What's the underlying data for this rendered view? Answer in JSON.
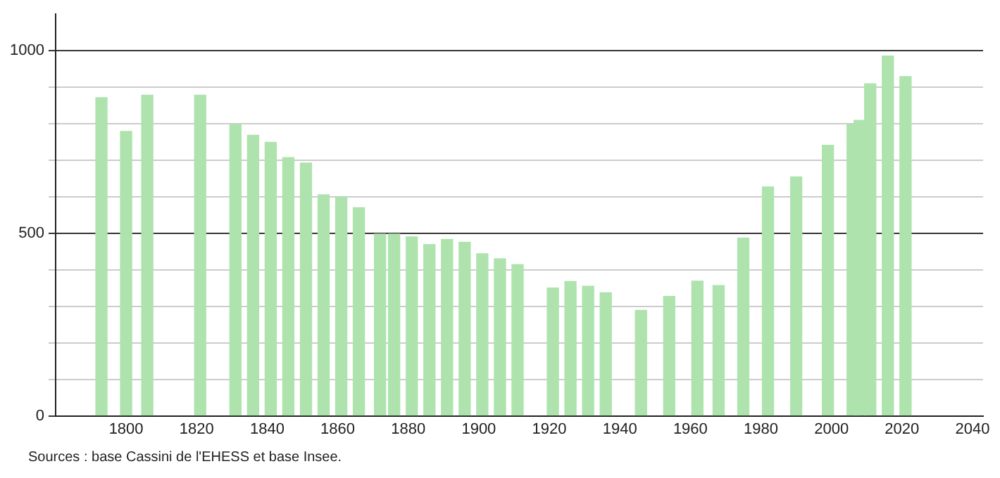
{
  "chart_data": {
    "type": "bar",
    "x": [
      1793,
      1800,
      1806,
      1821,
      1831,
      1836,
      1841,
      1846,
      1851,
      1856,
      1861,
      1866,
      1872,
      1876,
      1881,
      1886,
      1891,
      1896,
      1901,
      1906,
      1911,
      1921,
      1926,
      1931,
      1936,
      1946,
      1954,
      1962,
      1968,
      1975,
      1982,
      1990,
      1999,
      2006,
      2008,
      2011,
      2016,
      2021
    ],
    "values": [
      871,
      779,
      878,
      878,
      797,
      768,
      749,
      707,
      692,
      605,
      600,
      570,
      498,
      498,
      490,
      469,
      483,
      475,
      444,
      430,
      414,
      350,
      368,
      355,
      337,
      289,
      327,
      369,
      357,
      487,
      627,
      654,
      741,
      797,
      809,
      909,
      985,
      929
    ],
    "color": "#aee3ae",
    "xlim": [
      1780,
      2043
    ],
    "xticks": [
      1800,
      1820,
      1840,
      1860,
      1880,
      1900,
      1920,
      1940,
      1960,
      1980,
      2000,
      2020,
      2040
    ],
    "ylim": [
      0,
      1100
    ],
    "yticks": [
      0,
      {
        "value": 100,
        "label": null
      },
      {
        "value": 200,
        "label": null
      },
      {
        "value": 300,
        "label": null
      },
      {
        "value": 400,
        "label": null
      },
      500,
      {
        "value": 600,
        "label": null
      },
      {
        "value": 700,
        "label": null
      },
      {
        "value": 800,
        "label": null
      },
      {
        "value": 900,
        "label": null
      },
      1000
    ],
    "grid": "y",
    "legend": false,
    "annotations": [
      "Sources : base Cassini de l'EHESS et base Insee."
    ]
  }
}
